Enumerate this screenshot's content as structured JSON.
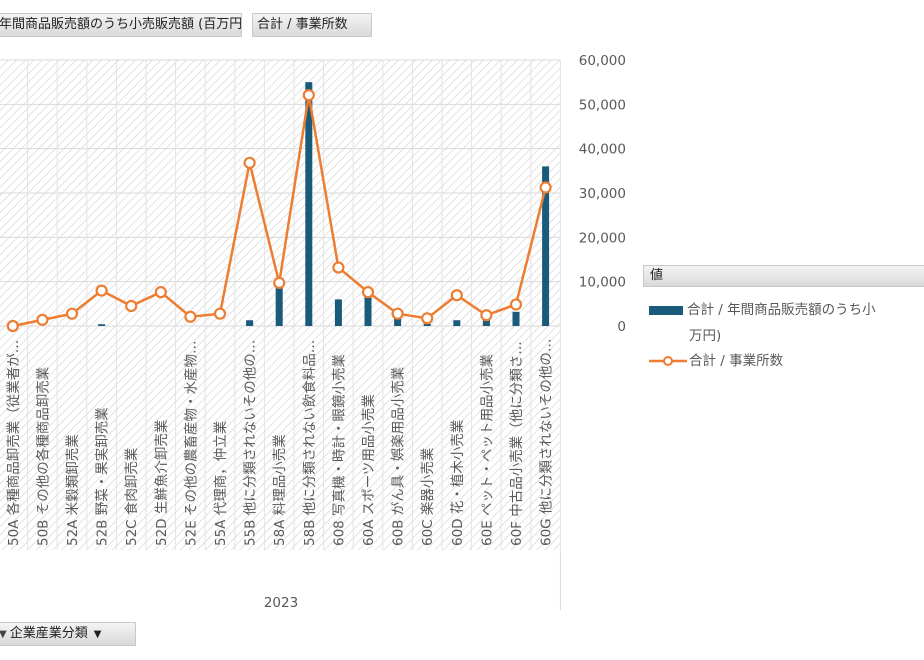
{
  "ui": {
    "value_field_1": "年間商品販売額のうち小売販売額 (百万円)",
    "value_field_2": "合計 / 事業所数",
    "axis_field": "企業産業分類",
    "legend_header": "値",
    "legend_series_1_line1": "合計 / 年間商品販売額のうち小",
    "legend_series_1_line2": "万円)",
    "legend_series_2": "合計 / 事業所数"
  },
  "colors": {
    "bar": "#1a5a7a",
    "line": "#ed7d31",
    "grid": "#d9d9d9",
    "hatch": "#d0d0d0"
  },
  "chart_data": {
    "type": "bar",
    "group_label": "2023",
    "categories": [
      "50A 各種商品卸売業（従業者が…",
      "50B その他の各種商品卸売業",
      "52A 米穀類卸売業",
      "52B 野菜・果実卸売業",
      "52C 食肉卸売業",
      "52D 生鮮魚介卸売業",
      "52E その他の農畜産物・水産物…",
      "55A 代理商，仲立業",
      "55B 他に分類されないその他の…",
      "58A 料理品小売業",
      "58B 他に分類されない飲食料品…",
      "608 写真機・時計・眼鏡小売業",
      "60A スポーツ用品小売業",
      "60B がん具・娯楽用品小売業",
      "60C 楽器小売業",
      "60D 花・植木小売業",
      "60E ペット・ペット用品小売業",
      "60F 中古品小売業（他に分類さ…",
      "60G 他に分類されないその他の…"
    ],
    "series": [
      {
        "name": "合計 / 年間商品販売額のうち小売販売額 (百万円)",
        "type": "bar",
        "axis": "secondary",
        "values": [
          0,
          0,
          0,
          400,
          0,
          0,
          0,
          0,
          1300,
          9000,
          55000,
          6000,
          7000,
          2000,
          500,
          1300,
          2000,
          3200,
          36000
        ]
      },
      {
        "name": "合計 / 事業所数",
        "type": "line",
        "axis": "primary",
        "values": [
          0,
          20,
          40,
          115,
          65,
          110,
          30,
          40,
          530,
          140,
          750,
          190,
          110,
          40,
          25,
          100,
          35,
          70,
          450
        ]
      }
    ],
    "y_right": {
      "ticks": [
        "0",
        "10,000",
        "20,000",
        "30,000",
        "40,000",
        "50,000",
        "60,000"
      ],
      "range": [
        0,
        60000
      ]
    },
    "y_left_range": [
      0,
      864
    ],
    "grid": true
  }
}
